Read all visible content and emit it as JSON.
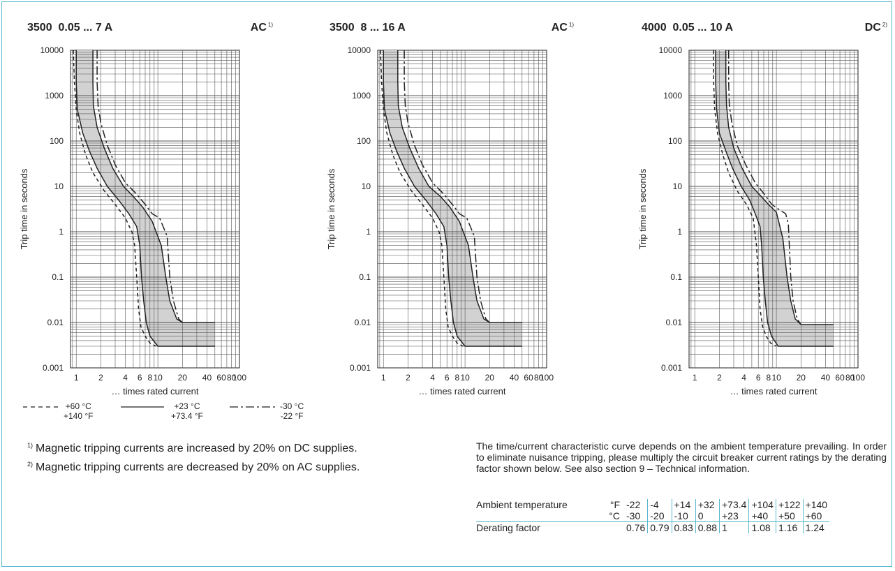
{
  "colors": {
    "frame": "#58b7cf",
    "band": "#d2d2d2",
    "curve": "#222222",
    "grid": "#555555"
  },
  "chart_data": [
    {
      "type": "line",
      "title": "3500  0.05 ... 7 A",
      "badge": "AC",
      "badge_note": "1)",
      "xlabel": "… times rated current",
      "ylabel": "Trip time in seconds",
      "x_scale": "log",
      "y_scale": "log",
      "xlim": [
        0.85,
        100
      ],
      "ylim": [
        0.001,
        10000
      ],
      "x_ticks": [
        "1",
        "2",
        "4",
        "6",
        "8",
        "10",
        "20",
        "40",
        "60",
        "80",
        "100"
      ],
      "y_ticks": [
        "0.001",
        "0.01",
        "0.1",
        "1",
        "10",
        "100",
        "1000",
        "10000"
      ],
      "band_series": [
        "lower",
        "upper"
      ],
      "series": [
        {
          "name": "+60 °C",
          "style": "dashed",
          "points": [
            [
              0.92,
              10000
            ],
            [
              0.95,
              2000
            ],
            [
              1.0,
              500
            ],
            [
              1.1,
              150
            ],
            [
              1.3,
              50
            ],
            [
              1.6,
              20
            ],
            [
              2.2,
              8
            ],
            [
              3.0,
              4
            ],
            [
              4.0,
              2
            ],
            [
              4.8,
              1.0
            ],
            [
              5.2,
              0.5
            ],
            [
              5.5,
              0.1
            ],
            [
              5.8,
              0.02
            ],
            [
              6.2,
              0.008
            ],
            [
              7.0,
              0.005
            ],
            [
              8.0,
              0.0035
            ],
            [
              9.5,
              0.003
            ]
          ]
        },
        {
          "name": "lower",
          "style": "solid",
          "points": [
            [
              1.0,
              10000
            ],
            [
              1.0,
              2000
            ],
            [
              1.03,
              500
            ],
            [
              1.2,
              150
            ],
            [
              1.45,
              60
            ],
            [
              1.8,
              25
            ],
            [
              2.4,
              10
            ],
            [
              3.3,
              5
            ],
            [
              4.4,
              2.5
            ],
            [
              5.5,
              1.3
            ],
            [
              6.0,
              0.5
            ],
            [
              6.3,
              0.1
            ],
            [
              6.7,
              0.03
            ],
            [
              7.2,
              0.01
            ],
            [
              8.0,
              0.005
            ],
            [
              10,
              0.003
            ],
            [
              50,
              0.003
            ]
          ]
        },
        {
          "name": "upper",
          "style": "solid",
          "points": [
            [
              1.6,
              10000
            ],
            [
              1.6,
              2000
            ],
            [
              1.62,
              600
            ],
            [
              1.8,
              200
            ],
            [
              2.2,
              70
            ],
            [
              2.8,
              25
            ],
            [
              3.8,
              10
            ],
            [
              5.0,
              6
            ],
            [
              6.5,
              3.5
            ],
            [
              8.5,
              1.7
            ],
            [
              11,
              0.5
            ],
            [
              12.5,
              0.1
            ],
            [
              14,
              0.03
            ],
            [
              17,
              0.012
            ],
            [
              20,
              0.01
            ],
            [
              50,
              0.01
            ]
          ]
        },
        {
          "name": "-30 °C",
          "style": "dashdot",
          "points": [
            [
              1.8,
              10000
            ],
            [
              1.8,
              2000
            ],
            [
              1.85,
              600
            ],
            [
              2.0,
              250
            ],
            [
              2.4,
              80
            ],
            [
              3.0,
              30
            ],
            [
              4.0,
              12
            ],
            [
              5.4,
              7
            ],
            [
              7.0,
              4
            ],
            [
              8.5,
              2.5
            ],
            [
              10.5,
              2.0
            ],
            [
              13,
              0.8
            ],
            [
              14,
              0.1
            ],
            [
              15.5,
              0.03
            ],
            [
              18,
              0.012
            ],
            [
              20,
              0.01
            ]
          ]
        }
      ]
    },
    {
      "type": "line",
      "title": "3500  8 ... 16 A",
      "badge": "AC",
      "badge_note": "1)",
      "xlabel": "… times rated current",
      "ylabel": "Trip time in seconds",
      "x_scale": "log",
      "y_scale": "log",
      "xlim": [
        0.85,
        100
      ],
      "ylim": [
        0.001,
        10000
      ],
      "x_ticks": [
        "1",
        "2",
        "4",
        "6",
        "8",
        "10",
        "20",
        "40",
        "60",
        "80",
        "100"
      ],
      "y_ticks": [
        "0.001",
        "0.01",
        "0.1",
        "1",
        "10",
        "100",
        "1000",
        "10000"
      ],
      "band_series": [
        "lower",
        "upper"
      ],
      "series": [
        {
          "name": "+60 °C",
          "style": "dashed",
          "points": [
            [
              0.92,
              10000
            ],
            [
              0.95,
              2000
            ],
            [
              1.0,
              500
            ],
            [
              1.1,
              150
            ],
            [
              1.3,
              50
            ],
            [
              1.6,
              20
            ],
            [
              2.2,
              8
            ],
            [
              3.0,
              4
            ],
            [
              4.0,
              2
            ],
            [
              4.8,
              1.0
            ],
            [
              5.2,
              0.5
            ],
            [
              5.5,
              0.1
            ],
            [
              5.8,
              0.02
            ],
            [
              6.2,
              0.008
            ],
            [
              7.0,
              0.005
            ],
            [
              8.0,
              0.0035
            ],
            [
              9.5,
              0.003
            ]
          ]
        },
        {
          "name": "lower",
          "style": "solid",
          "points": [
            [
              1.0,
              10000
            ],
            [
              1.0,
              2000
            ],
            [
              1.03,
              500
            ],
            [
              1.2,
              150
            ],
            [
              1.45,
              60
            ],
            [
              1.8,
              25
            ],
            [
              2.4,
              10
            ],
            [
              3.3,
              5
            ],
            [
              4.4,
              2.5
            ],
            [
              5.5,
              1.3
            ],
            [
              6.0,
              0.5
            ],
            [
              6.3,
              0.1
            ],
            [
              6.7,
              0.03
            ],
            [
              7.2,
              0.01
            ],
            [
              8.0,
              0.005
            ],
            [
              10,
              0.003
            ],
            [
              50,
              0.003
            ]
          ]
        },
        {
          "name": "upper",
          "style": "solid",
          "points": [
            [
              1.5,
              10000
            ],
            [
              1.5,
              2000
            ],
            [
              1.52,
              600
            ],
            [
              1.7,
              200
            ],
            [
              2.1,
              70
            ],
            [
              2.7,
              25
            ],
            [
              3.6,
              10
            ],
            [
              5.0,
              6
            ],
            [
              6.5,
              3.5
            ],
            [
              8.5,
              1.7
            ],
            [
              11,
              0.5
            ],
            [
              12.5,
              0.1
            ],
            [
              14,
              0.03
            ],
            [
              17,
              0.012
            ],
            [
              20,
              0.01
            ],
            [
              50,
              0.01
            ]
          ]
        },
        {
          "name": "-30 °C",
          "style": "dashdot",
          "points": [
            [
              1.8,
              10000
            ],
            [
              1.8,
              2000
            ],
            [
              1.85,
              600
            ],
            [
              2.0,
              250
            ],
            [
              2.4,
              80
            ],
            [
              3.0,
              30
            ],
            [
              4.0,
              12
            ],
            [
              5.4,
              7
            ],
            [
              7.0,
              4
            ],
            [
              8.5,
              2.5
            ],
            [
              10.5,
              2.0
            ],
            [
              13,
              0.8
            ],
            [
              14,
              0.1
            ],
            [
              15.5,
              0.03
            ],
            [
              18,
              0.012
            ],
            [
              20,
              0.01
            ]
          ]
        }
      ]
    },
    {
      "type": "line",
      "title": "4000  0.05 ... 10 A",
      "badge": "DC",
      "badge_note": "2)",
      "xlabel": "… times rated current",
      "ylabel": "Trip time in seconds",
      "x_scale": "log",
      "y_scale": "log",
      "xlim": [
        0.85,
        100
      ],
      "ylim": [
        0.001,
        10000
      ],
      "x_ticks": [
        "1",
        "2",
        "4",
        "6",
        "8",
        "10",
        "20",
        "40",
        "60",
        "80",
        "100"
      ],
      "y_ticks": [
        "0.001",
        "0.01",
        "0.1",
        "1",
        "10",
        "100",
        "1000",
        "10000"
      ],
      "band_series": [
        "lower",
        "upper"
      ],
      "series": [
        {
          "name": "+60 °C",
          "style": "dashed",
          "points": [
            [
              1.7,
              10000
            ],
            [
              1.7,
              2000
            ],
            [
              1.75,
              500
            ],
            [
              1.9,
              150
            ],
            [
              2.2,
              50
            ],
            [
              2.6,
              20
            ],
            [
              3.3,
              8
            ],
            [
              4.3,
              4
            ],
            [
              5.2,
              2
            ],
            [
              5.7,
              0.5
            ],
            [
              6.0,
              0.1
            ],
            [
              6.3,
              0.02
            ],
            [
              6.8,
              0.008
            ],
            [
              7.5,
              0.005
            ],
            [
              8.5,
              0.0035
            ],
            [
              10,
              0.003
            ]
          ]
        },
        {
          "name": "lower",
          "style": "solid",
          "points": [
            [
              1.8,
              10000
            ],
            [
              1.8,
              2000
            ],
            [
              1.85,
              500
            ],
            [
              2.0,
              150
            ],
            [
              2.4,
              60
            ],
            [
              2.9,
              25
            ],
            [
              3.7,
              10
            ],
            [
              4.7,
              5
            ],
            [
              5.5,
              2.5
            ],
            [
              6.3,
              1.3
            ],
            [
              6.6,
              0.5
            ],
            [
              6.9,
              0.1
            ],
            [
              7.3,
              0.03
            ],
            [
              7.8,
              0.01
            ],
            [
              8.7,
              0.005
            ],
            [
              10.5,
              0.003
            ],
            [
              50,
              0.003
            ]
          ]
        },
        {
          "name": "upper",
          "style": "solid",
          "points": [
            [
              2.4,
              10000
            ],
            [
              2.4,
              2000
            ],
            [
              2.45,
              600
            ],
            [
              2.6,
              200
            ],
            [
              3.0,
              70
            ],
            [
              3.8,
              25
            ],
            [
              5.0,
              10
            ],
            [
              6.5,
              6
            ],
            [
              8.0,
              4
            ],
            [
              10,
              2.7
            ],
            [
              12,
              0.7
            ],
            [
              13.5,
              0.1
            ],
            [
              15,
              0.03
            ],
            [
              17,
              0.012
            ],
            [
              20,
              0.009
            ],
            [
              50,
              0.009
            ]
          ]
        },
        {
          "name": "-30 °C",
          "style": "dashdot",
          "points": [
            [
              2.6,
              10000
            ],
            [
              2.6,
              2000
            ],
            [
              2.65,
              600
            ],
            [
              2.85,
              250
            ],
            [
              3.3,
              80
            ],
            [
              4.2,
              30
            ],
            [
              5.5,
              12
            ],
            [
              7.0,
              7
            ],
            [
              8.8,
              4
            ],
            [
              11,
              3.0
            ],
            [
              13,
              2.5
            ],
            [
              14,
              1.5
            ],
            [
              15,
              0.1
            ],
            [
              16,
              0.03
            ],
            [
              18,
              0.012
            ],
            [
              20,
              0.009
            ]
          ]
        }
      ]
    }
  ],
  "legend": {
    "items": [
      {
        "style": "dashed",
        "line1": "+60 °C",
        "line2": "+140 °F"
      },
      {
        "style": "solid",
        "line1": "+23 °C",
        "line2": "+73.4 °F"
      },
      {
        "style": "dashdot",
        "line1": "-30 °C",
        "line2": "-22 °F"
      }
    ]
  },
  "footnotes": [
    {
      "mark": "1)",
      "text": "Magnetic tripping currents are increased by 20% on DC supplies."
    },
    {
      "mark": "2)",
      "text": "Magnetic tripping currents are decreased by 20% on AC supplies."
    }
  ],
  "derating": {
    "text": "The time/current characteristic curve depends on the ambient temperature prevailing. In order to eliminate nuisance tripping, please multiply the circuit breaker current ratings by the derating factor shown below. See also section 9 – Technical information.",
    "row_label": "Ambient temperature",
    "unit_f": "°F",
    "unit_c": "°C",
    "factor_label": "Derating factor",
    "temps_f": [
      "-22",
      "-4",
      "+14",
      "+32",
      "+73.4",
      "+104",
      "+122",
      "+140"
    ],
    "temps_c": [
      "-30",
      "-20",
      "-10",
      "0",
      "+23",
      "+40",
      "+50",
      "+60"
    ],
    "factors": [
      "0.76",
      "0.79",
      "0.83",
      "0.88",
      "1",
      "1.08",
      "1.16",
      "1.24"
    ]
  }
}
